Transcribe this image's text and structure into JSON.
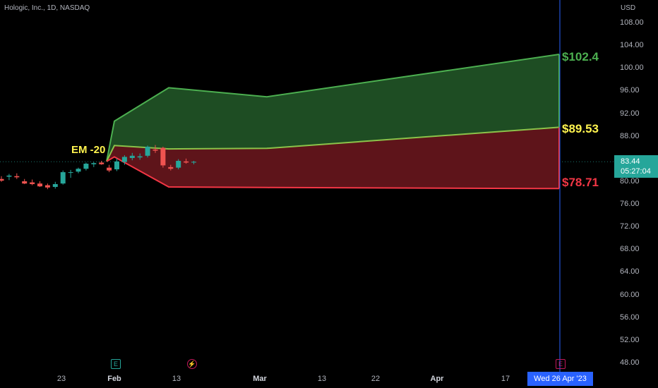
{
  "header": {
    "symbol_title": "Hologic, Inc., 1D, NASDAQ"
  },
  "price_axis": {
    "currency": "USD",
    "ticks": [
      "108.00",
      "104.00",
      "100.00",
      "96.00",
      "92.00",
      "88.00",
      "84.00",
      "80.00",
      "76.00",
      "72.00",
      "68.00",
      "64.00",
      "60.00",
      "56.00",
      "52.00",
      "48.00"
    ]
  },
  "time_axis": {
    "ticks": [
      {
        "label": "23",
        "month": false
      },
      {
        "label": "Feb",
        "month": true
      },
      {
        "label": "13",
        "month": false
      },
      {
        "label": "Mar",
        "month": true
      },
      {
        "label": "13",
        "month": false
      },
      {
        "label": "22",
        "month": false
      },
      {
        "label": "Apr",
        "month": true
      },
      {
        "label": "17",
        "month": false
      }
    ],
    "crosshair_date": "Wed 26 Apr '23"
  },
  "last_price": {
    "price": "83.44",
    "countdown": "05:27:04"
  },
  "annotations": {
    "upper_target": "$102.4",
    "mid_target": "$89.53",
    "lower_target": "$78.71",
    "em_label": "EM -20"
  },
  "events": {
    "earnings_icon_1": "E",
    "dividend_icon": "⚡",
    "earnings_icon_2": "E"
  },
  "colors": {
    "up": "#26a69a",
    "down": "#ef5350",
    "upper_band": "#1e4d23",
    "lower_band": "#5e141a",
    "highlight": "#fff44f",
    "crosshair": "#2962ff"
  },
  "chart_data": {
    "type": "candlestick",
    "candles": [
      {
        "o": 80.4,
        "h": 80.9,
        "l": 79.9,
        "c": 80.1
      },
      {
        "o": 80.8,
        "h": 81.3,
        "l": 80.2,
        "c": 81.0
      },
      {
        "o": 80.9,
        "h": 81.4,
        "l": 80.4,
        "c": 80.7
      },
      {
        "o": 80.0,
        "h": 80.4,
        "l": 79.5,
        "c": 79.6
      },
      {
        "o": 79.8,
        "h": 80.3,
        "l": 79.3,
        "c": 79.5
      },
      {
        "o": 79.6,
        "h": 80.0,
        "l": 79.0,
        "c": 79.1
      },
      {
        "o": 79.3,
        "h": 79.6,
        "l": 78.6,
        "c": 78.9
      },
      {
        "o": 79.0,
        "h": 79.9,
        "l": 78.7,
        "c": 79.5
      },
      {
        "o": 79.6,
        "h": 81.9,
        "l": 79.4,
        "c": 81.6
      },
      {
        "o": 81.5,
        "h": 82.0,
        "l": 80.6,
        "c": 81.6
      },
      {
        "o": 81.7,
        "h": 82.4,
        "l": 81.4,
        "c": 82.2
      },
      {
        "o": 82.2,
        "h": 83.3,
        "l": 81.9,
        "c": 83.1
      },
      {
        "o": 83.0,
        "h": 83.4,
        "l": 82.5,
        "c": 83.2
      },
      {
        "o": 83.3,
        "h": 83.6,
        "l": 82.9,
        "c": 83.0
      },
      {
        "o": 82.4,
        "h": 82.9,
        "l": 81.6,
        "c": 81.9
      },
      {
        "o": 82.1,
        "h": 84.0,
        "l": 81.8,
        "c": 83.5
      },
      {
        "o": 83.4,
        "h": 84.6,
        "l": 82.9,
        "c": 84.3
      },
      {
        "o": 84.1,
        "h": 85.0,
        "l": 83.7,
        "c": 84.5
      },
      {
        "o": 84.2,
        "h": 84.9,
        "l": 83.8,
        "c": 84.4
      },
      {
        "o": 84.5,
        "h": 86.3,
        "l": 84.2,
        "c": 86.1
      },
      {
        "o": 85.6,
        "h": 86.4,
        "l": 85.0,
        "c": 85.4
      },
      {
        "o": 85.9,
        "h": 86.1,
        "l": 82.4,
        "c": 82.8
      },
      {
        "o": 82.5,
        "h": 82.9,
        "l": 81.9,
        "c": 82.2
      },
      {
        "o": 82.4,
        "h": 83.9,
        "l": 82.1,
        "c": 83.6
      },
      {
        "o": 83.5,
        "h": 84.0,
        "l": 83.1,
        "c": 83.3
      },
      {
        "o": 83.3,
        "h": 83.6,
        "l": 83.0,
        "c": 83.44
      }
    ],
    "upper_band": [
      {
        "t": "2023-01-30",
        "v": 83.5
      },
      {
        "t": "2023-01-31",
        "v": 90.6
      },
      {
        "t": "2023-02-10",
        "v": 96.5
      },
      {
        "t": "2023-03-01",
        "v": 94.9
      },
      {
        "t": "2023-04-26",
        "v": 102.4
      }
    ],
    "mid_band": [
      {
        "t": "2023-01-30",
        "v": 83.5
      },
      {
        "t": "2023-01-31",
        "v": 86.3
      },
      {
        "t": "2023-02-10",
        "v": 85.7
      },
      {
        "t": "2023-03-01",
        "v": 85.8
      },
      {
        "t": "2023-04-26",
        "v": 89.53
      }
    ],
    "lower_band": [
      {
        "t": "2023-01-30",
        "v": 83.5
      },
      {
        "t": "2023-01-31",
        "v": 84.3
      },
      {
        "t": "2023-02-10",
        "v": 79.0
      },
      {
        "t": "2023-03-01",
        "v": 78.9
      },
      {
        "t": "2023-04-26",
        "v": 78.71
      }
    ],
    "ylim": [
      48,
      108
    ],
    "last_price": 83.44
  }
}
